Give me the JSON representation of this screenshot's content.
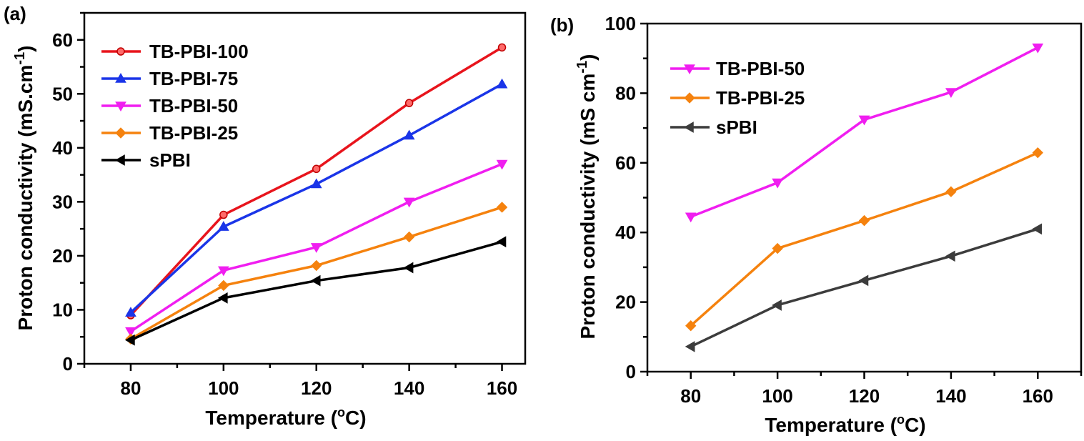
{
  "chart_data": [
    {
      "type": "line",
      "panel_label": "(a)",
      "xlabel": "Temperature (",
      "xlabel_sup": "o",
      "xlabel_end": "C)",
      "ylabel": "Proton conductivity (mS.cm",
      "ylabel_sup": "-1",
      "ylabel_end": ")",
      "x": [
        80,
        100,
        120,
        140,
        160
      ],
      "xticks": [
        "80",
        "100",
        "120",
        "140",
        "160"
      ],
      "xlim": [
        70,
        165
      ],
      "ylim": [
        0,
        65
      ],
      "yticks": [
        "0",
        "10",
        "20",
        "30",
        "40",
        "50",
        "60"
      ],
      "legend_position": "top-left",
      "series": [
        {
          "name": "TB-PBI-100",
          "color": "#e8141c",
          "marker": "circle",
          "values": [
            9.0,
            27.6,
            36.1,
            48.3,
            58.6
          ]
        },
        {
          "name": "TB-PBI-75",
          "color": "#1a35e8",
          "marker": "triangle-up",
          "values": [
            9.5,
            25.4,
            33.3,
            42.3,
            51.8
          ]
        },
        {
          "name": "TB-PBI-50",
          "color": "#f01ef0",
          "marker": "triangle-down",
          "values": [
            6.0,
            17.3,
            21.6,
            30.0,
            37.0
          ]
        },
        {
          "name": "TB-PBI-25",
          "color": "#f5820e",
          "marker": "diamond",
          "values": [
            4.6,
            14.5,
            18.2,
            23.5,
            29.0
          ]
        },
        {
          "name": "sPBI",
          "color": "#000000",
          "marker": "triangle-left",
          "values": [
            4.4,
            12.2,
            15.4,
            17.8,
            22.6
          ]
        }
      ]
    },
    {
      "type": "line",
      "panel_label": "(b)",
      "xlabel": "Temperature (",
      "xlabel_sup": "o",
      "xlabel_end": "C)",
      "ylabel": "Proton conductivity (mS cm",
      "ylabel_sup": "-1",
      "ylabel_end": ")",
      "x": [
        80,
        100,
        120,
        140,
        160
      ],
      "xticks": [
        "80",
        "100",
        "120",
        "140",
        "160"
      ],
      "xlim": [
        70,
        170
      ],
      "ylim": [
        0,
        100
      ],
      "yticks": [
        "0",
        "20",
        "40",
        "60",
        "80",
        "100"
      ],
      "legend_position": "top-left",
      "series": [
        {
          "name": "TB-PBI-50",
          "color": "#f01ef0",
          "marker": "triangle-down",
          "values": [
            44.5,
            54.3,
            72.4,
            80.3,
            93.1
          ]
        },
        {
          "name": "TB-PBI-25",
          "color": "#f5820e",
          "marker": "diamond",
          "values": [
            13.2,
            35.4,
            43.4,
            51.7,
            62.9
          ]
        },
        {
          "name": "sPBI",
          "color": "#3c3c3c",
          "marker": "triangle-left",
          "values": [
            7.2,
            19.1,
            26.2,
            33.2,
            41.0
          ]
        }
      ]
    }
  ]
}
